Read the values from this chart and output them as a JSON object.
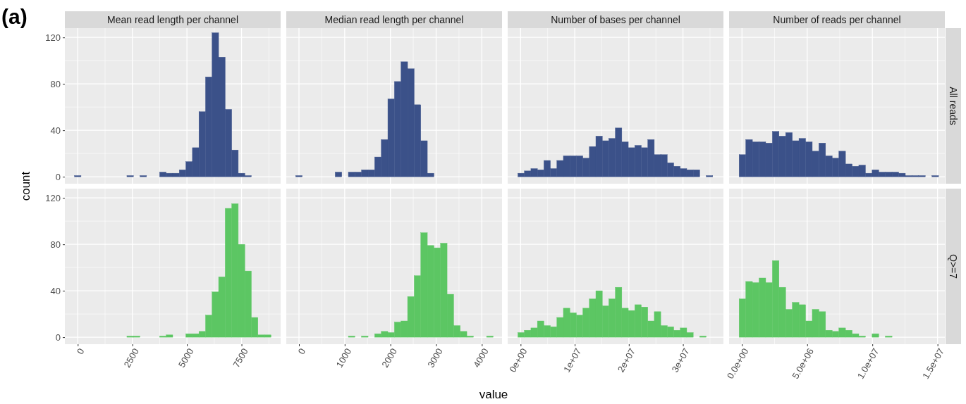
{
  "chart_data": [
    {
      "type": "histogram",
      "title": "Mean read length per channel",
      "ylabel": "count",
      "annotations": [
        "(a)"
      ],
      "color": "#3b5189",
      "grid": true,
      "tick_labels": "y",
      "bins": [
        -150,
        150,
        450,
        750,
        1050,
        1350,
        1650,
        1950,
        2250,
        2550,
        2850,
        3150,
        3450,
        3750,
        4050,
        4350,
        4650,
        4950,
        5250,
        5550,
        5850,
        6150,
        6450,
        6750,
        7050,
        7350,
        7650,
        7950
      ],
      "values": [
        1,
        0,
        0,
        0,
        0,
        0,
        0,
        0,
        1,
        0,
        1,
        0,
        0,
        4,
        3,
        3,
        6,
        13,
        25,
        56,
        86,
        124,
        103,
        58,
        23,
        3,
        1
      ],
      "xlim": [
        -590,
        9290
      ],
      "xticks": [
        0,
        2500,
        5000,
        7500
      ],
      "ylim": [
        -6,
        128
      ],
      "yticks": [
        0,
        40,
        80,
        120
      ]
    },
    {
      "type": "histogram",
      "title": "Median read length per channel",
      "color": "#3b5189",
      "grid": true,
      "tick_labels": false,
      "bins": [
        -72,
        72,
        216,
        360,
        504,
        648,
        792,
        936,
        1080,
        1224,
        1368,
        1512,
        1656,
        1800,
        1944,
        2088,
        2232,
        2376,
        2520,
        2664,
        2808,
        2952
      ],
      "values": [
        1,
        0,
        0,
        0,
        0,
        0,
        4,
        0,
        4,
        4,
        6,
        6,
        17,
        32,
        67,
        82,
        99,
        93,
        62,
        31,
        3
      ],
      "xlim": [
        -278,
        4442
      ],
      "xticks": [
        0,
        1000,
        2000,
        3000,
        4000
      ],
      "ylim": [
        -6,
        128
      ],
      "yticks": [
        0,
        40,
        80,
        120
      ]
    },
    {
      "type": "histogram",
      "title": "Number of bases per channel",
      "color": "#3b5189",
      "grid": true,
      "tick_labels": false,
      "bins": [
        -500000,
        700000,
        1900000,
        3100000,
        4300000,
        5500000,
        6700000,
        7900000,
        9100000,
        10300000,
        11500000,
        12700000,
        13900000,
        15100000,
        16300000,
        17500000,
        18700000,
        19900000,
        21100000,
        22300000,
        23500000,
        24700000,
        25900000,
        27100000,
        28300000,
        29500000,
        30700000,
        31900000,
        33100000,
        34300000,
        35500000
      ],
      "values": [
        3,
        5,
        7,
        6,
        14,
        7,
        14,
        18,
        18,
        18,
        16,
        26,
        35,
        31,
        33,
        42,
        30,
        25,
        27,
        25,
        32,
        19,
        19,
        12,
        9,
        7,
        6,
        6,
        0,
        1
      ],
      "xlim": [
        -2390000,
        37480000
      ],
      "xticks": [
        0,
        10000000,
        20000000,
        30000000
      ],
      "ylim": [
        -6,
        128
      ],
      "yticks": [
        0,
        40,
        80,
        120
      ]
    },
    {
      "type": "histogram",
      "title": "Number of reads per channel",
      "y2label": "All reads",
      "color": "#3b5189",
      "grid": true,
      "tick_labels": false,
      "bins": [
        -220000,
        290000,
        800000,
        1310000,
        1820000,
        2330000,
        2840000,
        3350000,
        3860000,
        4370000,
        4880000,
        5390000,
        5900000,
        6410000,
        6920000,
        7430000,
        7940000,
        8450000,
        8960000,
        9470000,
        9980000,
        10490000,
        11000000,
        11510000,
        12020000,
        12530000,
        13040000,
        13550000,
        14060000,
        14570000,
        15080000
      ],
      "values": [
        19,
        32,
        30,
        30,
        29,
        39,
        35,
        38,
        31,
        33,
        30,
        22,
        29,
        18,
        16,
        22,
        11,
        9,
        10,
        3,
        6,
        4,
        4,
        4,
        3,
        1,
        1,
        1,
        0,
        1
      ],
      "xlim": [
        -990000,
        15560000
      ],
      "xticks": [
        0,
        5000000,
        10000000,
        15000000
      ],
      "ylim": [
        -6,
        128
      ],
      "yticks": [
        0,
        40,
        80,
        120
      ]
    },
    {
      "type": "histogram",
      "color": "#5cc663",
      "grid": true,
      "bins": [
        2250,
        2550,
        2850,
        3150,
        3450,
        3750,
        4050,
        4350,
        4650,
        4950,
        5250,
        5550,
        5850,
        6150,
        6450,
        6750,
        7050,
        7350,
        7650,
        7950,
        8250,
        8550,
        8850
      ],
      "values": [
        1,
        1,
        0,
        0,
        0,
        1,
        2,
        0,
        0,
        3,
        3,
        5,
        19,
        39,
        52,
        111,
        115,
        80,
        57,
        17,
        2,
        2
      ],
      "xlim": [
        -590,
        9290
      ],
      "xticks": [
        0,
        2500,
        5000,
        7500
      ],
      "ylim": [
        -6,
        128
      ],
      "yticks": [
        0,
        40,
        80,
        120
      ]
    },
    {
      "type": "histogram",
      "xlabel": "value",
      "color": "#5cc663",
      "grid": true,
      "tick_labels": "x",
      "bins": [
        1080,
        1224,
        1368,
        1512,
        1656,
        1800,
        1944,
        2088,
        2232,
        2376,
        2520,
        2664,
        2808,
        2952,
        3096,
        3240,
        3384,
        3528,
        3672,
        3816,
        3960,
        4104,
        4248
      ],
      "values": [
        1,
        0,
        1,
        0,
        3,
        5,
        4,
        13,
        14,
        35,
        53,
        90,
        79,
        77,
        81,
        37,
        10,
        5,
        1,
        0,
        0,
        1
      ],
      "xlim": [
        -278,
        4442
      ],
      "xticks": [
        0,
        1000,
        2000,
        3000,
        4000
      ],
      "ylim": [
        -6,
        128
      ],
      "yticks": [
        0,
        40,
        80,
        120
      ]
    },
    {
      "type": "histogram",
      "color": "#5cc663",
      "grid": true,
      "tick_labels": "x",
      "bins": [
        -500000,
        700000,
        1900000,
        3100000,
        4300000,
        5500000,
        6700000,
        7900000,
        9100000,
        10300000,
        11500000,
        12700000,
        13900000,
        15100000,
        16300000,
        17500000,
        18700000,
        19900000,
        21100000,
        22300000,
        23500000,
        24700000,
        25900000,
        27100000,
        28300000,
        29500000,
        30700000,
        31900000,
        33100000,
        34300000
      ],
      "values": [
        4,
        6,
        8,
        14,
        10,
        9,
        17,
        25,
        21,
        19,
        25,
        33,
        40,
        27,
        33,
        43,
        25,
        23,
        28,
        26,
        14,
        22,
        10,
        9,
        6,
        8,
        4,
        0,
        1
      ],
      "xlim": [
        -2390000,
        37480000
      ],
      "xticks": [
        {
          "value": 0,
          "label": "0e+00"
        },
        {
          "value": 10000000,
          "label": "1e+07"
        },
        {
          "value": 20000000,
          "label": "2e+07"
        },
        {
          "value": 30000000,
          "label": "3e+07"
        }
      ],
      "ylim": [
        -6,
        128
      ],
      "yticks": [
        0,
        40,
        80,
        120
      ]
    },
    {
      "type": "histogram",
      "y2label": "Q>=7",
      "color": "#5cc663",
      "grid": true,
      "tick_labels": "x",
      "bins": [
        -220000,
        290000,
        800000,
        1310000,
        1820000,
        2330000,
        2840000,
        3350000,
        3860000,
        4370000,
        4880000,
        5390000,
        5900000,
        6410000,
        6920000,
        7430000,
        7940000,
        8450000,
        8960000,
        9470000,
        9980000,
        10490000,
        11000000,
        11510000
      ],
      "values": [
        33,
        48,
        47,
        51,
        47,
        66,
        43,
        24,
        30,
        28,
        14,
        24,
        22,
        6,
        5,
        8,
        6,
        3,
        1,
        0,
        3,
        0,
        1
      ],
      "xlim": [
        -990000,
        15560000
      ],
      "xticks": [
        {
          "value": 0,
          "label": "0.0e+00"
        },
        {
          "value": 5000000,
          "label": "5.0e+06"
        },
        {
          "value": 10000000,
          "label": "1.0e+07"
        },
        {
          "value": 15000000,
          "label": "1.5e+07"
        }
      ],
      "ylim": [
        -6,
        128
      ],
      "yticks": [
        0,
        40,
        80,
        120
      ]
    }
  ]
}
